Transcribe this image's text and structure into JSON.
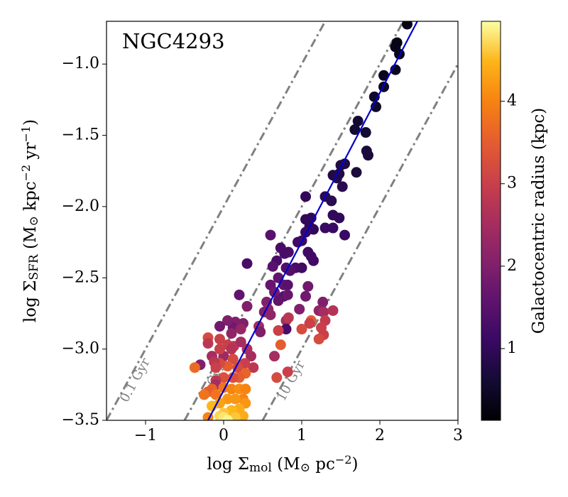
{
  "chart_data": {
    "type": "scatter",
    "title": "NGC4293",
    "xlabel": [
      {
        "text": "log Σ"
      },
      {
        "text": "mol",
        "style": "sub"
      },
      {
        "text": " (M"
      },
      {
        "text": "⊙",
        "style": "sub"
      },
      {
        "text": " pc"
      },
      {
        "text": "−2",
        "style": "sup"
      },
      {
        "text": ")"
      }
    ],
    "ylabel": [
      {
        "text": "log Σ"
      },
      {
        "text": "SFR",
        "style": "sub"
      },
      {
        "text": " (M"
      },
      {
        "text": "⊙",
        "style": "sub"
      },
      {
        "text": " kpc"
      },
      {
        "text": "−2",
        "style": "sup"
      },
      {
        "text": " yr"
      },
      {
        "text": "−1",
        "style": "sup"
      },
      {
        "text": ")"
      }
    ],
    "colorbar_label": "Galactocentric radius (kpc)",
    "colormap": "inferno",
    "xlim": [
      -1.5,
      3
    ],
    "ylim": [
      -3.5,
      -0.7
    ],
    "clim": [
      0.13,
      4.97
    ],
    "xticks": [
      {
        "value": -1,
        "label": "−1"
      },
      0,
      1,
      2,
      3
    ],
    "yticks": [
      {
        "value": -3.5,
        "label": "−3.5"
      },
      {
        "value": -3.0,
        "label": "−3.0"
      },
      {
        "value": -2.5,
        "label": "−2.5"
      },
      {
        "value": -2.0,
        "label": "−2.0"
      },
      {
        "value": -1.5,
        "label": "−1.5"
      },
      {
        "value": -1.0,
        "label": "−1.0"
      }
    ],
    "cticks": [
      1,
      2,
      3,
      4
    ],
    "depletion_lines": [
      {
        "label": "0.1 Gyr",
        "x": [
          -1.5,
          1.3
        ],
        "y": [
          -3.5,
          -0.7
        ],
        "color": "#808080"
      },
      {
        "label": "1 Gyr",
        "x": [
          -0.5,
          2.3
        ],
        "y": [
          -3.5,
          -0.7
        ],
        "color": "#808080"
      },
      {
        "label": "10 Gyr",
        "x": [
          0.5,
          3.0
        ],
        "y": [
          -3.5,
          -1.0
        ],
        "color": "#808080"
      }
    ],
    "fit_line": {
      "x": [
        -0.2,
        2.48
      ],
      "y": [
        -3.5,
        -0.7
      ],
      "color": "#0000cc"
    },
    "x": [
      2.35,
      2.22,
      2.2,
      2.25,
      2.05,
      2.2,
      2.05,
      1.93,
      1.95,
      1.72,
      1.68,
      1.82,
      1.83,
      1.85,
      1.7,
      1.55,
      1.5,
      1.48,
      1.4,
      1.45,
      1.38,
      1.52,
      1.3,
      1.05,
      1.05,
      1.12,
      1.1,
      1.15,
      1.4,
      1.48,
      1.3,
      1.4,
      1.55,
      1.05,
      1.0,
      0.95,
      0.6,
      0.73,
      0.78,
      0.83,
      1.08,
      1.12,
      1.15,
      1.0,
      0.92,
      0.8,
      0.85,
      0.68,
      0.63,
      0.7,
      0.6,
      0.77,
      0.82,
      0.65,
      0.77,
      0.82,
      0.7,
      1.05,
      1.08,
      1.27,
      0.97,
      0.55,
      0.57,
      0.52,
      0.6,
      0.3,
      0.3,
      0.2,
      0.8,
      0.83,
      0.8,
      1.22,
      1.28,
      1.4,
      1.3,
      1.25,
      1.12,
      1.1,
      1.0,
      1.28,
      1.22,
      0.7,
      0.45,
      0.47,
      0.25,
      0.15,
      0.12,
      0.05,
      0.22,
      0.1,
      -0.05,
      -0.2,
      -0.2,
      -0.05,
      0.05,
      0.13,
      0.22,
      0.3,
      0.35,
      0.1,
      0.0,
      -0.05,
      -0.15,
      -0.3,
      -0.37,
      0.38,
      0.27,
      0.12,
      0.18,
      0.05,
      -0.05,
      -0.12,
      -0.1,
      0.65,
      0.73,
      0.68,
      0.82,
      0.28,
      0.2,
      0.12,
      0.0,
      -0.1,
      -0.1,
      -0.15,
      -0.2,
      -0.25,
      -0.1,
      0.0,
      0.1,
      0.2,
      0.28,
      0.25,
      0.15,
      0.05,
      -0.05,
      -0.15,
      0.28,
      0.2,
      0.1,
      0.0,
      0.25,
      0.15,
      -0.05,
      0.0,
      0.05,
      -0.2
    ],
    "values": [
      -0.72,
      -0.85,
      -0.88,
      -0.93,
      -1.08,
      -1.04,
      -1.16,
      -1.23,
      -1.3,
      -1.4,
      -1.46,
      -1.48,
      -1.61,
      -1.64,
      -1.76,
      -1.7,
      -1.71,
      -1.77,
      -1.78,
      -1.8,
      -1.96,
      -1.86,
      -1.93,
      -1.93,
      -2.09,
      -2.08,
      -2.14,
      -2.16,
      -2.06,
      -2.08,
      -2.15,
      -2.15,
      -2.2,
      -2.18,
      -2.24,
      -2.25,
      -2.2,
      -2.29,
      -2.33,
      -2.32,
      -2.32,
      -2.35,
      -2.38,
      -2.43,
      -2.43,
      -2.43,
      -2.45,
      -2.38,
      -2.42,
      -2.5,
      -2.55,
      -2.55,
      -2.55,
      -2.6,
      -2.63,
      -2.62,
      -2.66,
      -2.63,
      -2.56,
      -2.67,
      -2.72,
      -2.67,
      -2.72,
      -2.74,
      -2.76,
      -2.4,
      -2.7,
      -2.62,
      -2.8,
      -2.78,
      -2.86,
      -2.73,
      -2.74,
      -2.73,
      -2.8,
      -2.85,
      -2.8,
      -2.82,
      -2.86,
      -2.9,
      -2.93,
      -2.87,
      -2.84,
      -2.88,
      -2.82,
      -2.81,
      -2.85,
      -2.8,
      -2.86,
      -2.89,
      -2.84,
      -2.92,
      -2.96,
      -2.93,
      -2.97,
      -2.98,
      -2.95,
      -3.0,
      -3.05,
      -3.0,
      -3.05,
      -3.0,
      -3.05,
      -3.11,
      -3.13,
      -3.13,
      -3.1,
      -3.07,
      -3.13,
      -3.12,
      -3.1,
      -3.09,
      -3.13,
      -3.05,
      -2.97,
      -3.2,
      -3.16,
      -3.17,
      -3.2,
      -3.2,
      -3.2,
      -3.22,
      -3.25,
      -3.28,
      -3.3,
      -3.32,
      -3.32,
      -3.27,
      -3.28,
      -3.28,
      -3.28,
      -3.35,
      -3.35,
      -3.35,
      -3.38,
      -3.4,
      -3.38,
      -3.42,
      -3.43,
      -3.45,
      -3.47,
      -3.48,
      -3.47,
      -3.48,
      -3.5,
      -3.48
    ],
    "colorvalues": [
      0.3,
      0.3,
      0.3,
      0.4,
      0.4,
      0.4,
      0.5,
      0.5,
      0.5,
      0.6,
      0.6,
      0.6,
      0.7,
      0.7,
      0.7,
      0.8,
      0.8,
      0.8,
      0.8,
      0.8,
      0.9,
      0.9,
      0.9,
      1.0,
      1.0,
      1.0,
      1.0,
      1.0,
      1.0,
      1.0,
      1.1,
      1.1,
      1.1,
      1.1,
      1.1,
      1.2,
      1.5,
      1.3,
      1.3,
      1.3,
      1.2,
      1.2,
      1.2,
      1.2,
      1.3,
      1.4,
      1.4,
      1.3,
      1.5,
      1.6,
      1.7,
      1.6,
      1.5,
      1.8,
      1.5,
      1.7,
      1.6,
      1.8,
      1.8,
      2.0,
      2.0,
      2.0,
      2.2,
      2.0,
      2.2,
      1.3,
      2.0,
      1.6,
      2.5,
      2.8,
      1.3,
      2.2,
      2.5,
      2.7,
      2.9,
      3.0,
      3.5,
      3.0,
      3.2,
      3.0,
      3.2,
      3.0,
      2.5,
      2.0,
      2.0,
      2.0,
      1.8,
      2.0,
      2.3,
      2.2,
      1.8,
      3.2,
      2.8,
      3.0,
      3.0,
      2.8,
      2.5,
      2.6,
      2.5,
      2.7,
      2.4,
      3.0,
      2.5,
      2.0,
      3.7,
      2.8,
      3.0,
      3.2,
      3.2,
      3.5,
      3.2,
      2.8,
      3.0,
      2.5,
      3.5,
      3.2,
      3.0,
      3.6,
      3.5,
      3.3,
      3.3,
      2.8,
      2.5,
      3.6,
      3.5,
      3.8,
      3.8,
      3.8,
      4.0,
      4.1,
      4.0,
      4.0,
      4.2,
      4.2,
      4.3,
      4.5,
      4.2,
      4.4,
      4.5,
      4.6,
      4.4,
      4.6,
      4.7,
      4.8,
      4.9,
      4.0
    ]
  }
}
